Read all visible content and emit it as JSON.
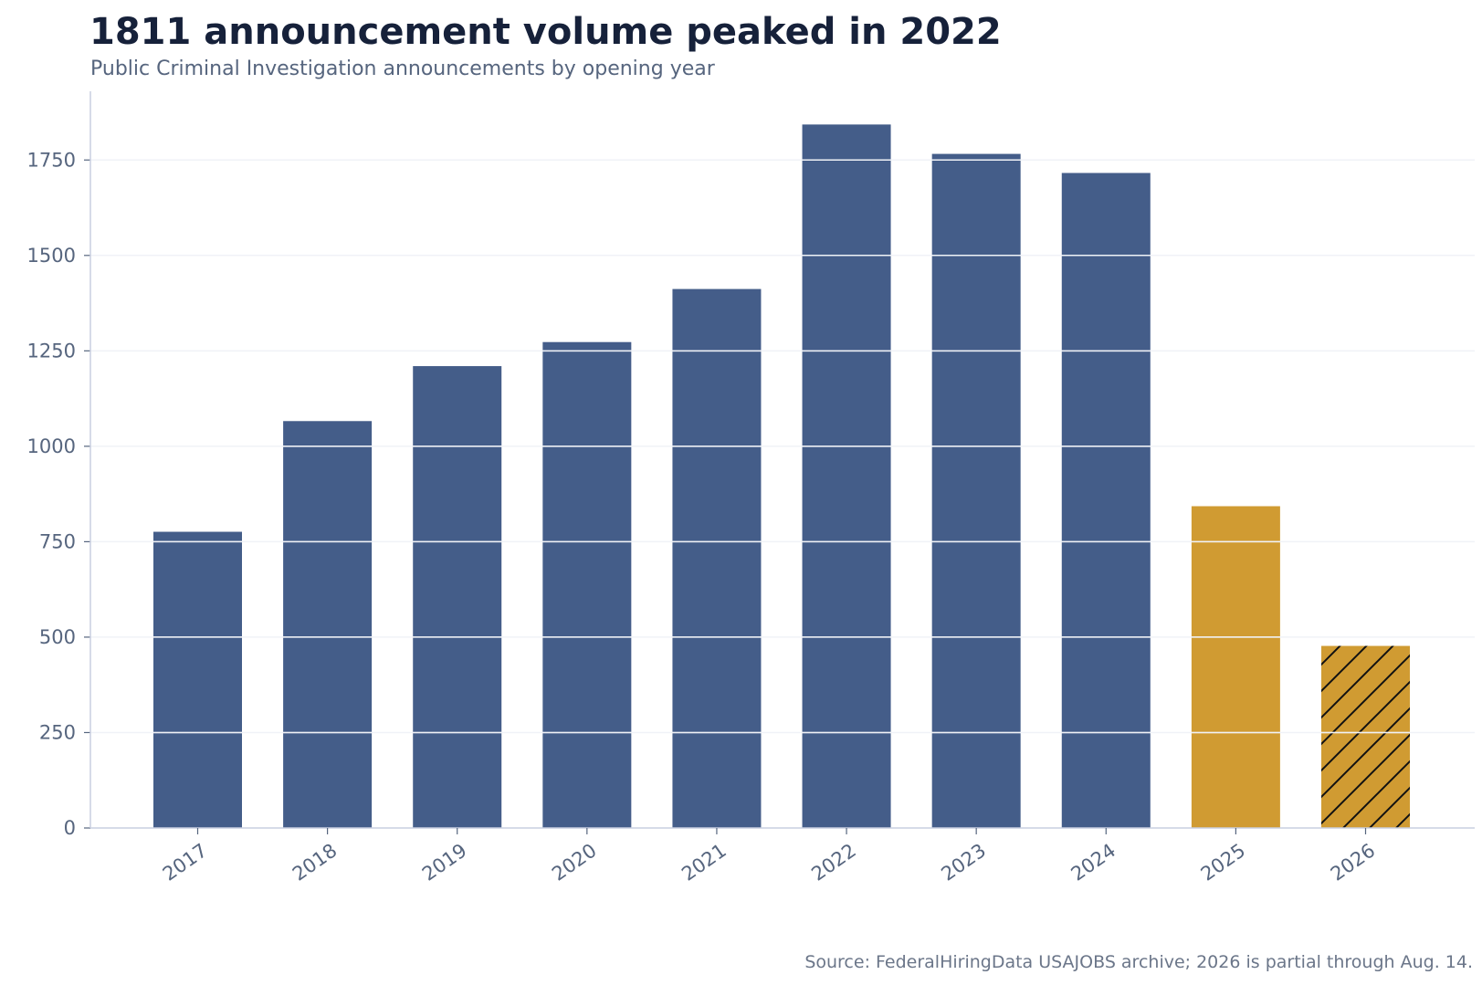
{
  "colors": {
    "primary_bar": "#445d89",
    "highlight_bar": "#d09b32",
    "grid": "#e3e7f0",
    "axis": "#c9cfe0",
    "text_muted": "#56657e"
  },
  "chart_data": {
    "type": "bar",
    "title": "1811 announcement volume peaked in 2022",
    "subtitle": "Public Criminal Investigation announcements by opening year",
    "source": "Source: FederalHiringData USAJOBS archive; 2026 is partial through Aug. 14.",
    "xlabel": "",
    "ylabel": "",
    "categories": [
      "2017",
      "2018",
      "2019",
      "2020",
      "2021",
      "2022",
      "2023",
      "2024",
      "2025",
      "2026"
    ],
    "values": [
      776,
      1066,
      1210,
      1273,
      1412,
      1843,
      1766,
      1716,
      843,
      477
    ],
    "bar_styles": [
      "primary",
      "primary",
      "primary",
      "primary",
      "primary",
      "primary",
      "primary",
      "primary",
      "highlight",
      "highlight-hatched"
    ],
    "ylim": [
      0,
      1930
    ],
    "yticks": [
      0,
      250,
      500,
      750,
      1000,
      1250,
      1500,
      1750
    ],
    "grid": true,
    "grid_over_bars": true,
    "legend": "none"
  }
}
